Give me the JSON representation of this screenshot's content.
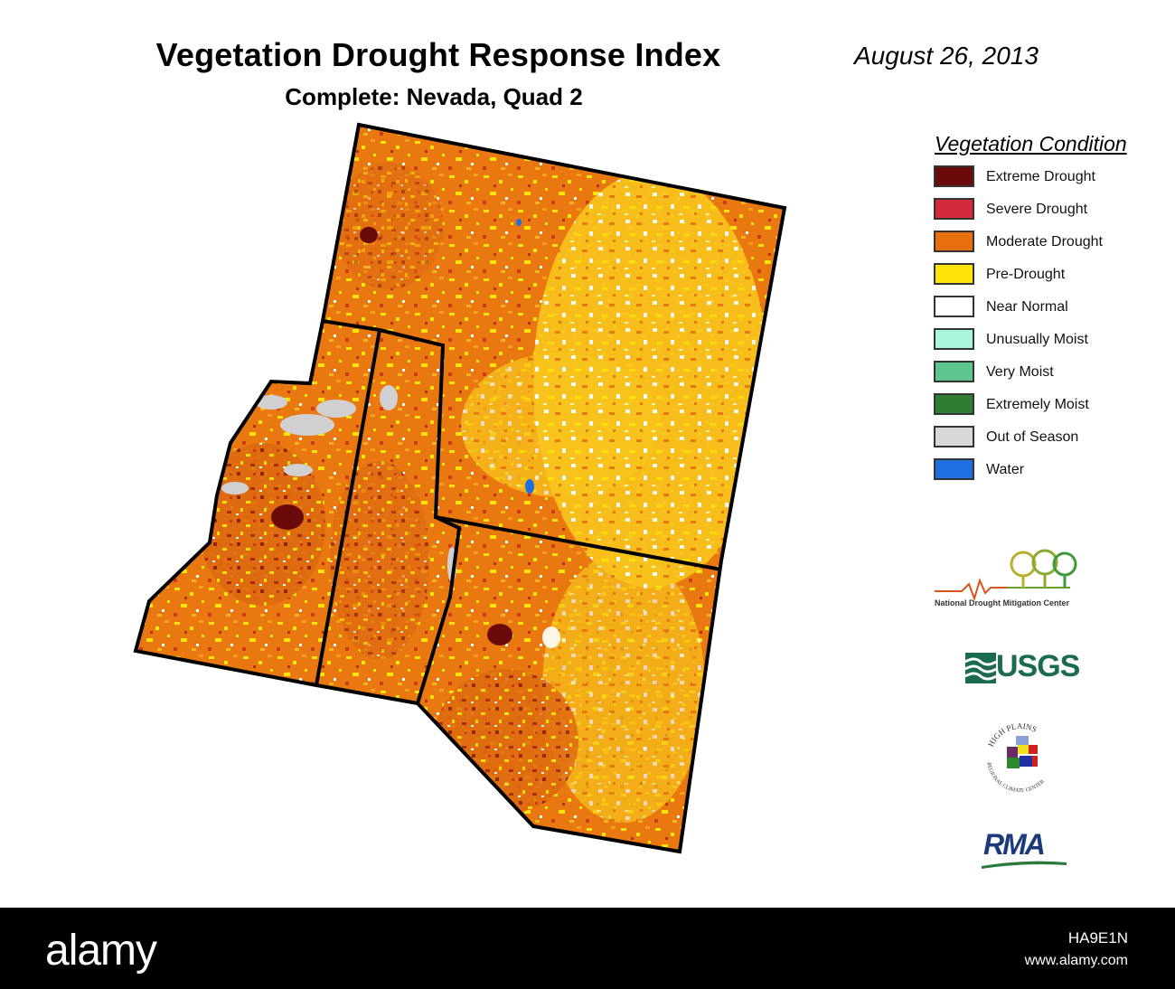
{
  "header": {
    "title": "Vegetation Drought Response Index",
    "subtitle": "Complete: Nevada, Quad 2",
    "date": "August 26, 2013"
  },
  "legend": {
    "title": "Vegetation Condition",
    "items": [
      {
        "label": "Extreme Drought",
        "color": "#6b0a0a"
      },
      {
        "label": "Severe Drought",
        "color": "#d42a3c"
      },
      {
        "label": "Moderate Drought",
        "color": "#e86f0e"
      },
      {
        "label": "Pre-Drought",
        "color": "#ffe40a"
      },
      {
        "label": "Near Normal",
        "color": "#ffffff"
      },
      {
        "label": "Unusually Moist",
        "color": "#a8f5dc"
      },
      {
        "label": "Very Moist",
        "color": "#5ec58f"
      },
      {
        "label": "Extremely Moist",
        "color": "#2f7d32"
      },
      {
        "label": "Out of Season",
        "color": "#d8d8d8"
      },
      {
        "label": "Water",
        "color": "#1e6fe0"
      }
    ]
  },
  "logos": {
    "ndmc": "National Drought Mitigation Center",
    "usgs": "USGS",
    "hprcc_top": "HIGH PLAINS",
    "hprcc_bottom": "REGIONAL CLIMATE CENTER",
    "rma": "RMA"
  },
  "footer": {
    "brand": "alamy",
    "image_id": "HA9E1N",
    "url": "www.alamy.com"
  }
}
